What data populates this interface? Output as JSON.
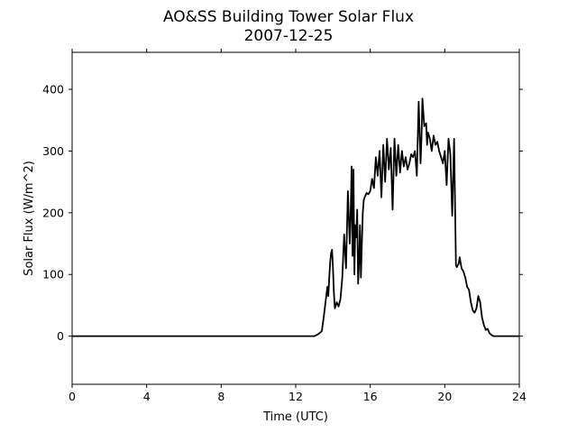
{
  "chart_data": {
    "type": "line",
    "title": "AO&SS Building Tower Solar Flux",
    "subtitle": "2007-12-25",
    "xlabel": "Time (UTC)",
    "ylabel": "Solar Flux (W/m^2)",
    "xlim": [
      0,
      24
    ],
    "ylim": [
      -78,
      460
    ],
    "xticks": [
      0,
      4,
      8,
      12,
      16,
      20,
      24
    ],
    "yticks": [
      0,
      100,
      200,
      300,
      400
    ],
    "grid": false,
    "line_color": "#000000",
    "series": [
      {
        "x": [
          0,
          12.0,
          13.0,
          13.2,
          13.4,
          13.5,
          13.6,
          13.7,
          13.75,
          13.8,
          13.85,
          13.9,
          13.95,
          14.0,
          14.05,
          14.1,
          14.15,
          14.2,
          14.3,
          14.4,
          14.5,
          14.6,
          14.7,
          14.8,
          14.9,
          14.95,
          15.0,
          15.05,
          15.1,
          15.15,
          15.2,
          15.25,
          15.3,
          15.35,
          15.4,
          15.45,
          15.5,
          15.55,
          15.6,
          15.65,
          15.7,
          15.8,
          15.9,
          16.0,
          16.1,
          16.2,
          16.3,
          16.4,
          16.5,
          16.6,
          16.7,
          16.8,
          16.9,
          17.0,
          17.1,
          17.2,
          17.3,
          17.4,
          17.5,
          17.6,
          17.7,
          17.8,
          17.9,
          18.0,
          18.1,
          18.2,
          18.3,
          18.4,
          18.5,
          18.6,
          18.7,
          18.75,
          18.8,
          18.9,
          19.0,
          19.05,
          19.1,
          19.2,
          19.3,
          19.4,
          19.5,
          19.6,
          19.7,
          19.8,
          19.9,
          20.0,
          20.1,
          20.2,
          20.3,
          20.4,
          20.5,
          20.6,
          20.65,
          20.7,
          20.75,
          20.8,
          20.9,
          21.0,
          21.1,
          21.2,
          21.3,
          21.4,
          21.5,
          21.6,
          21.7,
          21.8,
          21.9,
          22.0,
          22.1,
          22.2,
          22.3,
          22.4,
          22.5,
          22.6,
          22.7,
          22.8,
          23.0,
          24.0
        ],
        "y": [
          0,
          0,
          0,
          3,
          8,
          30,
          55,
          80,
          65,
          95,
          120,
          135,
          140,
          110,
          70,
          45,
          50,
          55,
          48,
          60,
          95,
          165,
          110,
          235,
          150,
          200,
          275,
          130,
          270,
          100,
          180,
          160,
          205,
          85,
          120,
          180,
          95,
          150,
          200,
          220,
          225,
          232,
          230,
          235,
          255,
          240,
          290,
          260,
          300,
          225,
          310,
          250,
          320,
          270,
          305,
          205,
          320,
          260,
          310,
          265,
          300,
          275,
          290,
          270,
          280,
          295,
          290,
          300,
          260,
          380,
          280,
          320,
          385,
          340,
          345,
          310,
          330,
          320,
          300,
          325,
          310,
          315,
          300,
          290,
          280,
          300,
          245,
          320,
          295,
          195,
          320,
          115,
          112,
          115,
          118,
          128,
          110,
          105,
          95,
          80,
          75,
          55,
          42,
          38,
          45,
          65,
          55,
          30,
          18,
          10,
          12,
          5,
          2,
          0,
          0,
          0,
          0,
          0
        ]
      }
    ]
  }
}
